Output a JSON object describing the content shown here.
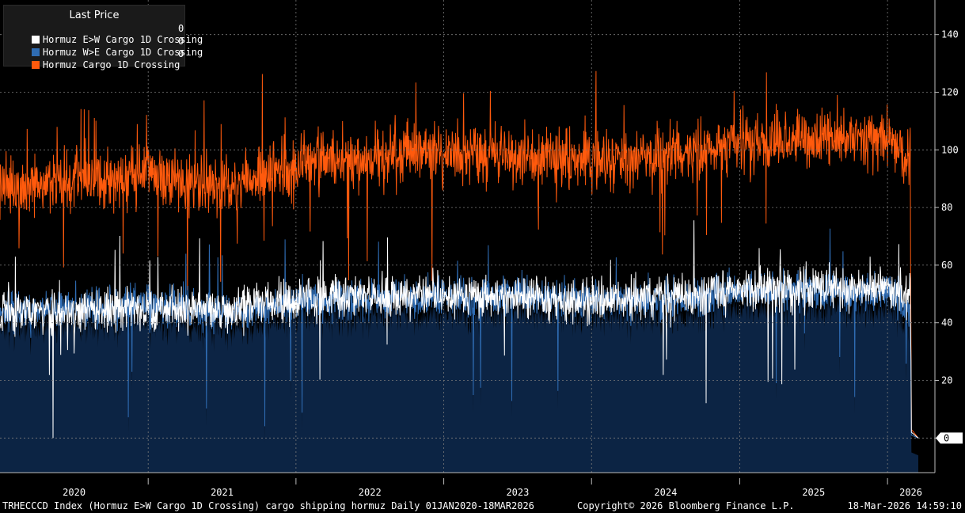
{
  "chart_data": {
    "type": "line",
    "title": "",
    "legend": {
      "title": "Last Price",
      "placement": "top-left",
      "entries": [
        {
          "name": "Hormuz E>W Cargo 1D Crossing",
          "last": "0",
          "color": "#ffffff"
        },
        {
          "name": "Hormuz W>E Cargo 1D Crossing",
          "last": "0",
          "color": "#2f6cb3"
        },
        {
          "name": "Hormuz Cargo 1D Crossing",
          "last": "0",
          "color": "#ff5a0d"
        }
      ]
    },
    "x_tick_labels": [
      "2020",
      "2021",
      "2022",
      "2023",
      "2024",
      "2025",
      "2026"
    ],
    "x_range": [
      "2020-01-01",
      "2026-03-18"
    ],
    "y_tick_labels": [
      "0",
      "20",
      "40",
      "60",
      "80",
      "100",
      "120",
      "140"
    ],
    "ylim": [
      -12,
      152
    ],
    "y_axis_side": "right",
    "grid": true,
    "last_value_tag": "0",
    "series": [
      {
        "name": "Hormuz Cargo 1D Crossing",
        "color": "#ff5a0d",
        "points": [
          [
            "2020-01-01",
            87
          ],
          [
            "2020-07-01",
            89
          ],
          [
            "2021-01-01",
            91
          ],
          [
            "2021-07-01",
            88
          ],
          [
            "2022-01-01",
            95
          ],
          [
            "2022-07-01",
            97
          ],
          [
            "2023-01-01",
            99
          ],
          [
            "2023-07-01",
            98
          ],
          [
            "2024-01-01",
            96
          ],
          [
            "2024-07-01",
            97
          ],
          [
            "2025-01-01",
            102
          ],
          [
            "2025-07-01",
            103
          ],
          [
            "2026-01-01",
            103
          ],
          [
            "2026-02-26",
            95
          ],
          [
            "2026-03-01",
            3
          ],
          [
            "2026-03-18",
            0
          ]
        ]
      },
      {
        "name": "Hormuz E>W Cargo 1D Crossing",
        "color": "#ffffff",
        "points": [
          [
            "2020-01-01",
            43
          ],
          [
            "2020-07-01",
            44
          ],
          [
            "2021-01-01",
            45
          ],
          [
            "2021-07-01",
            45
          ],
          [
            "2022-01-01",
            48
          ],
          [
            "2022-07-01",
            49
          ],
          [
            "2023-01-01",
            50
          ],
          [
            "2023-07-01",
            49
          ],
          [
            "2024-01-01",
            48
          ],
          [
            "2024-07-01",
            49
          ],
          [
            "2025-01-01",
            51
          ],
          [
            "2025-07-01",
            52
          ],
          [
            "2026-01-01",
            52
          ],
          [
            "2026-02-26",
            50
          ],
          [
            "2026-03-01",
            2
          ],
          [
            "2026-03-18",
            0
          ]
        ]
      },
      {
        "name": "Hormuz W>E Cargo 1D Crossing",
        "color": "#2f6cb3",
        "points": [
          [
            "2020-01-01",
            44
          ],
          [
            "2020-07-01",
            45
          ],
          [
            "2021-01-01",
            46
          ],
          [
            "2021-07-01",
            43
          ],
          [
            "2022-01-01",
            47
          ],
          [
            "2022-07-01",
            48
          ],
          [
            "2023-01-01",
            49
          ],
          [
            "2023-07-01",
            49
          ],
          [
            "2024-01-01",
            48
          ],
          [
            "2024-07-01",
            48
          ],
          [
            "2025-01-01",
            51
          ],
          [
            "2025-07-01",
            51
          ],
          [
            "2026-01-01",
            51
          ],
          [
            "2026-02-26",
            45
          ],
          [
            "2026-03-01",
            1
          ],
          [
            "2026-03-18",
            0
          ]
        ]
      }
    ]
  },
  "footer": {
    "left": "TRHECCCD Index (Hormuz E>W Cargo 1D Crossing) cargo shipping hormuz Daily 01JAN2020-18MAR2026",
    "center": "Copyright© 2026 Bloomberg Finance L.P.",
    "right": "18-Mar-2026 14:59:10"
  }
}
